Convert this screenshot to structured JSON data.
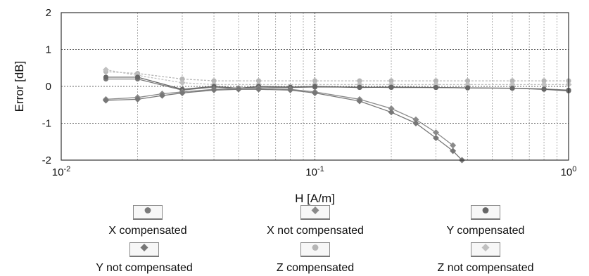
{
  "chart_data": {
    "type": "line",
    "xlabel": "H [A/m]",
    "ylabel": "Error [dB]",
    "x_scale": "log",
    "xlim": [
      0.01,
      1
    ],
    "ylim": [
      -2,
      2
    ],
    "x_ticks": [
      {
        "value": 0.01,
        "base": "10",
        "exp": "-2"
      },
      {
        "value": 0.1,
        "base": "10",
        "exp": "-1"
      },
      {
        "value": 1,
        "base": "10",
        "exp": "0"
      }
    ],
    "y_ticks": [
      2,
      1,
      0,
      -1,
      -2
    ],
    "grid": true,
    "legend_position": "bottom",
    "series": [
      {
        "name": "X compensated",
        "marker": "circle",
        "color": "#7a7a7a",
        "x": [
          0.015,
          0.02,
          0.03,
          0.04,
          0.05,
          0.06,
          0.08,
          0.1,
          0.15,
          0.2,
          0.3,
          0.4,
          0.6,
          0.8,
          1.0
        ],
        "y": [
          0.2,
          0.2,
          -0.1,
          -0.02,
          -0.05,
          -0.02,
          -0.03,
          -0.02,
          -0.02,
          -0.03,
          -0.03,
          -0.04,
          -0.05,
          -0.07,
          -0.1
        ]
      },
      {
        "name": "X not compensated",
        "marker": "diamond",
        "color": "#8a8a8a",
        "x": [
          0.015,
          0.02,
          0.025,
          0.03,
          0.04,
          0.05,
          0.06,
          0.08,
          0.1,
          0.15,
          0.2,
          0.25,
          0.3,
          0.35
        ],
        "y": [
          -0.35,
          -0.3,
          -0.2,
          -0.15,
          -0.08,
          -0.05,
          -0.05,
          -0.08,
          -0.15,
          -0.35,
          -0.6,
          -0.9,
          -1.25,
          -1.6
        ]
      },
      {
        "name": "Y compensated",
        "marker": "circle",
        "color": "#666666",
        "x": [
          0.015,
          0.02,
          0.03,
          0.04,
          0.05,
          0.06,
          0.08,
          0.1,
          0.15,
          0.2,
          0.3,
          0.4,
          0.6,
          0.8,
          1.0
        ],
        "y": [
          0.25,
          0.25,
          -0.08,
          0.0,
          -0.05,
          0.0,
          -0.02,
          0.0,
          -0.03,
          -0.02,
          -0.03,
          -0.04,
          -0.05,
          -0.08,
          -0.12
        ]
      },
      {
        "name": "Y not compensated",
        "marker": "diamond",
        "color": "#777777",
        "x": [
          0.015,
          0.02,
          0.025,
          0.03,
          0.04,
          0.05,
          0.06,
          0.08,
          0.1,
          0.15,
          0.2,
          0.25,
          0.3,
          0.35,
          0.38
        ],
        "y": [
          -0.38,
          -0.35,
          -0.25,
          -0.18,
          -0.1,
          -0.08,
          -0.08,
          -0.1,
          -0.18,
          -0.4,
          -0.7,
          -1.0,
          -1.4,
          -1.75,
          -2.0
        ]
      },
      {
        "name": "Z compensated",
        "marker": "circle",
        "color": "#b5b5b5",
        "x": [
          0.015,
          0.02,
          0.03,
          0.04,
          0.06,
          0.1,
          0.15,
          0.2,
          0.3,
          0.4,
          0.6,
          0.8,
          1.0
        ],
        "y": [
          0.4,
          0.35,
          0.2,
          0.15,
          0.15,
          0.15,
          0.15,
          0.15,
          0.15,
          0.15,
          0.15,
          0.15,
          0.15
        ]
      },
      {
        "name": "Z not compensated",
        "marker": "diamond",
        "color": "#c0c0c0",
        "x": [
          0.015,
          0.02,
          0.03,
          0.04,
          0.06,
          0.1,
          0.15,
          0.2,
          0.3,
          0.4,
          0.6,
          0.8,
          1.0
        ],
        "y": [
          0.45,
          0.3,
          0.1,
          0.05,
          0.05,
          0.05,
          0.05,
          0.05,
          0.05,
          0.05,
          0.05,
          0.05,
          0.05
        ]
      }
    ]
  }
}
